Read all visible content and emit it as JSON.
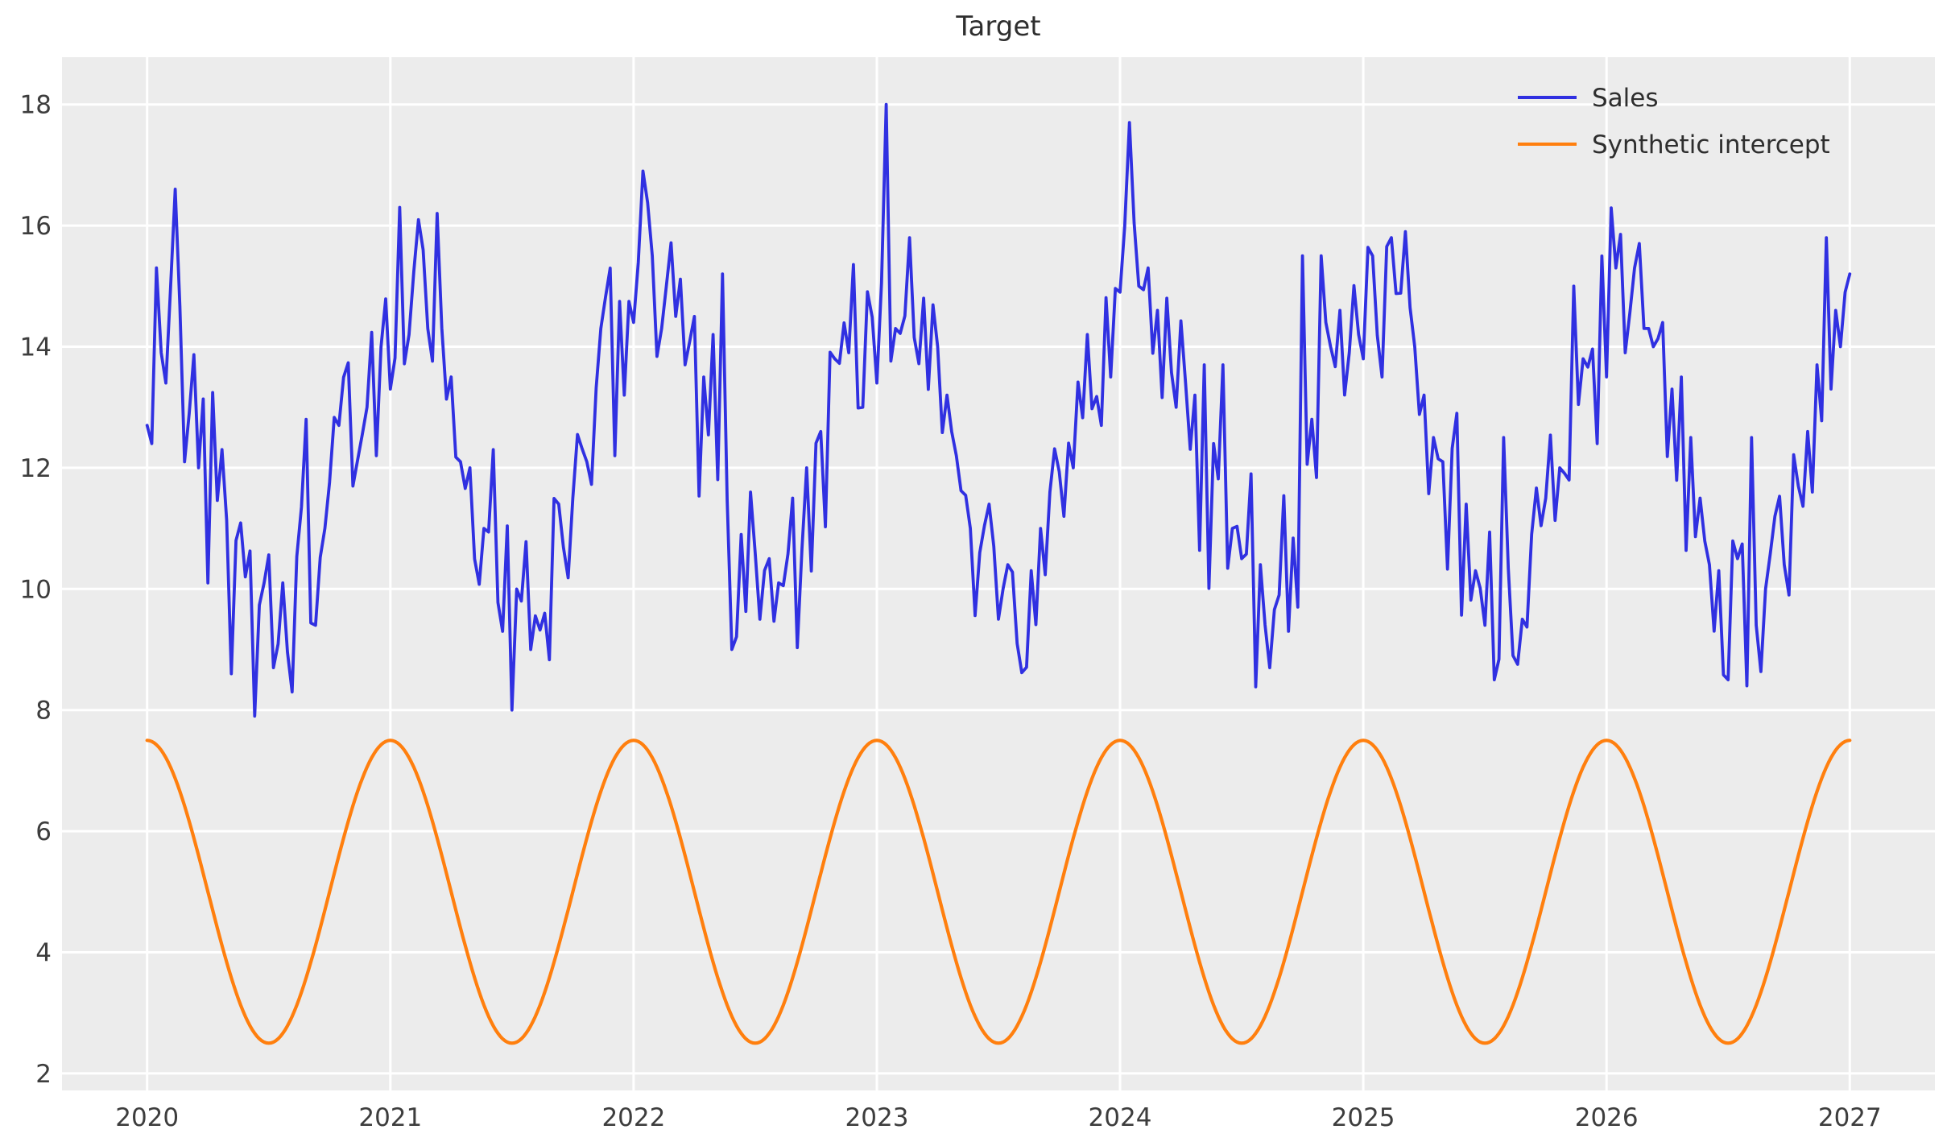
{
  "chart_data": {
    "type": "line",
    "title": "Target",
    "xlabel": "",
    "ylabel": "",
    "xlim": [
      2019.65,
      2027.35
    ],
    "ylim": [
      1.72,
      18.78
    ],
    "xticks": [
      2020,
      2021,
      2022,
      2023,
      2024,
      2025,
      2026,
      2027
    ],
    "yticks": [
      2,
      4,
      6,
      8,
      10,
      12,
      14,
      16,
      18
    ],
    "grid": true,
    "plot_background": "#ececec",
    "gridline_color": "#ffffff",
    "legend_position": "upper right",
    "legend_frame": false,
    "series": [
      {
        "name": "Sales",
        "color": "#3030e1",
        "line_width": 3.8,
        "description": "Noisy weekly time series with annual seasonality: peaks ~15-18 every January-February, troughs ~8-10 every July",
        "generator": {
          "x_start": 2020,
          "years": 7,
          "points_per_year": 52,
          "mean": 12.3,
          "amplitude": 2.7,
          "phase_years": 0.045,
          "noise_amplitude": 1.4,
          "seed": 11
        },
        "observed": {
          "start": 12.7,
          "end": 15.2,
          "max": 18.0,
          "max_at": 2023.04,
          "min": 7.9,
          "min_at": 2020.44
        },
        "anchor_points": [
          [
            2020.0,
            12.7
          ],
          [
            2020.02,
            12.4
          ],
          [
            2020.06,
            13.9
          ],
          [
            2020.08,
            13.4
          ],
          [
            2020.12,
            16.6
          ],
          [
            2020.15,
            12.1
          ],
          [
            2020.17,
            12.9
          ],
          [
            2020.21,
            12.0
          ],
          [
            2020.25,
            10.1
          ],
          [
            2020.31,
            12.3
          ],
          [
            2020.35,
            8.6
          ],
          [
            2020.4,
            10.2
          ],
          [
            2020.44,
            7.9
          ],
          [
            2020.48,
            10.1
          ],
          [
            2020.52,
            8.7
          ],
          [
            2020.56,
            10.1
          ],
          [
            2020.6,
            8.3
          ],
          [
            2020.65,
            12.8
          ],
          [
            2020.69,
            9.4
          ],
          [
            2020.73,
            11.0
          ],
          [
            2020.79,
            12.7
          ],
          [
            2020.85,
            11.7
          ],
          [
            2020.9,
            13.0
          ],
          [
            2020.94,
            12.2
          ],
          [
            2021.0,
            13.3
          ],
          [
            2021.04,
            16.3
          ],
          [
            2021.08,
            14.2
          ],
          [
            2021.13,
            15.6
          ],
          [
            2021.19,
            16.2
          ],
          [
            2021.25,
            13.5
          ],
          [
            2021.29,
            12.1
          ],
          [
            2021.33,
            12.0
          ],
          [
            2021.38,
            11.0
          ],
          [
            2021.42,
            12.3
          ],
          [
            2021.46,
            9.3
          ],
          [
            2021.5,
            8.0
          ],
          [
            2021.54,
            9.8
          ],
          [
            2021.58,
            9.0
          ],
          [
            2021.63,
            9.6
          ],
          [
            2021.69,
            11.4
          ],
          [
            2021.75,
            11.5
          ],
          [
            2021.81,
            12.1
          ],
          [
            2021.87,
            14.3
          ],
          [
            2021.92,
            12.2
          ],
          [
            2021.96,
            13.2
          ],
          [
            2022.0,
            14.4
          ],
          [
            2022.04,
            16.9
          ],
          [
            2022.08,
            15.5
          ],
          [
            2022.12,
            14.3
          ],
          [
            2022.17,
            14.5
          ],
          [
            2022.21,
            13.7
          ],
          [
            2022.25,
            14.5
          ],
          [
            2022.29,
            13.5
          ],
          [
            2022.33,
            14.2
          ],
          [
            2022.37,
            15.2
          ],
          [
            2022.4,
            9.0
          ],
          [
            2022.44,
            10.9
          ],
          [
            2022.48,
            11.6
          ],
          [
            2022.52,
            9.5
          ],
          [
            2022.56,
            10.5
          ],
          [
            2022.6,
            10.1
          ],
          [
            2022.65,
            11.5
          ],
          [
            2022.71,
            12.0
          ],
          [
            2022.77,
            12.6
          ],
          [
            2022.83,
            13.8
          ],
          [
            2022.88,
            13.9
          ],
          [
            2022.94,
            13.0
          ],
          [
            2023.0,
            13.4
          ],
          [
            2023.04,
            18.0
          ],
          [
            2023.08,
            14.3
          ],
          [
            2023.13,
            15.8
          ],
          [
            2023.19,
            14.8
          ],
          [
            2023.25,
            14.0
          ],
          [
            2023.29,
            13.2
          ],
          [
            2023.33,
            12.2
          ],
          [
            2023.38,
            11.0
          ],
          [
            2023.42,
            10.6
          ],
          [
            2023.46,
            11.4
          ],
          [
            2023.5,
            9.5
          ],
          [
            2023.54,
            10.4
          ],
          [
            2023.58,
            9.1
          ],
          [
            2023.63,
            10.3
          ],
          [
            2023.67,
            11.0
          ],
          [
            2023.71,
            11.6
          ],
          [
            2023.77,
            11.2
          ],
          [
            2023.81,
            12.0
          ],
          [
            2023.87,
            14.2
          ],
          [
            2023.92,
            12.7
          ],
          [
            2023.96,
            13.5
          ],
          [
            2024.0,
            14.9
          ],
          [
            2024.04,
            17.7
          ],
          [
            2024.08,
            15.0
          ],
          [
            2024.12,
            15.3
          ],
          [
            2024.15,
            14.6
          ],
          [
            2024.19,
            14.8
          ],
          [
            2024.23,
            13.0
          ],
          [
            2024.27,
            13.4
          ],
          [
            2024.31,
            13.2
          ],
          [
            2024.35,
            13.7
          ],
          [
            2024.38,
            12.4
          ],
          [
            2024.42,
            13.7
          ],
          [
            2024.46,
            11.0
          ],
          [
            2024.5,
            10.5
          ],
          [
            2024.54,
            11.9
          ],
          [
            2024.58,
            10.4
          ],
          [
            2024.62,
            8.7
          ],
          [
            2024.65,
            9.9
          ],
          [
            2024.69,
            9.3
          ],
          [
            2024.73,
            9.7
          ],
          [
            2024.75,
            15.5
          ],
          [
            2024.79,
            12.8
          ],
          [
            2024.83,
            15.5
          ],
          [
            2024.87,
            14.0
          ],
          [
            2024.9,
            14.6
          ],
          [
            2024.94,
            13.9
          ],
          [
            2024.98,
            14.2
          ],
          [
            2025.0,
            13.8
          ],
          [
            2025.04,
            15.5
          ],
          [
            2025.08,
            13.5
          ],
          [
            2025.12,
            15.8
          ],
          [
            2025.17,
            15.9
          ],
          [
            2025.21,
            14.0
          ],
          [
            2025.25,
            13.2
          ],
          [
            2025.29,
            12.5
          ],
          [
            2025.33,
            12.1
          ],
          [
            2025.38,
            12.9
          ],
          [
            2025.42,
            11.4
          ],
          [
            2025.46,
            10.3
          ],
          [
            2025.5,
            9.4
          ],
          [
            2025.54,
            8.5
          ],
          [
            2025.58,
            12.5
          ],
          [
            2025.62,
            8.9
          ],
          [
            2025.65,
            9.5
          ],
          [
            2025.69,
            10.9
          ],
          [
            2025.75,
            11.5
          ],
          [
            2025.81,
            12.0
          ],
          [
            2025.87,
            15.0
          ],
          [
            2025.9,
            13.8
          ],
          [
            2025.96,
            12.4
          ],
          [
            2026.0,
            13.5
          ],
          [
            2026.04,
            15.3
          ],
          [
            2026.08,
            13.9
          ],
          [
            2026.12,
            15.3
          ],
          [
            2026.15,
            14.3
          ],
          [
            2026.19,
            14.0
          ],
          [
            2026.23,
            14.4
          ],
          [
            2026.27,
            13.3
          ],
          [
            2026.31,
            13.5
          ],
          [
            2026.35,
            12.5
          ],
          [
            2026.38,
            11.5
          ],
          [
            2026.42,
            10.4
          ],
          [
            2026.46,
            10.3
          ],
          [
            2026.5,
            8.5
          ],
          [
            2026.54,
            10.5
          ],
          [
            2026.58,
            8.4
          ],
          [
            2026.6,
            12.5
          ],
          [
            2026.62,
            9.4
          ],
          [
            2026.65,
            10.0
          ],
          [
            2026.69,
            11.2
          ],
          [
            2026.73,
            10.4
          ],
          [
            2026.75,
            9.9
          ],
          [
            2026.79,
            11.7
          ],
          [
            2026.83,
            12.6
          ],
          [
            2026.85,
            11.6
          ],
          [
            2026.87,
            13.7
          ],
          [
            2026.9,
            15.8
          ],
          [
            2026.92,
            13.3
          ],
          [
            2026.94,
            14.6
          ],
          [
            2026.96,
            14.0
          ],
          [
            2026.98,
            14.9
          ],
          [
            2027.0,
            15.2
          ]
        ]
      },
      {
        "name": "Synthetic intercept",
        "color": "#ff7f0e",
        "line_width": 4.2,
        "description": "Smooth cosine wave, period 1 year, maximum 7.5 at each year start, minimum 2.5 at mid-year",
        "generator": {
          "type": "cosine",
          "x_start": 2020,
          "years": 7,
          "samples_per_year": 104,
          "mean": 5.0,
          "amplitude": 2.5,
          "period_years": 1
        },
        "observed": {
          "start": 7.5,
          "end": 7.5,
          "max": 7.5,
          "min": 2.5
        }
      }
    ]
  }
}
